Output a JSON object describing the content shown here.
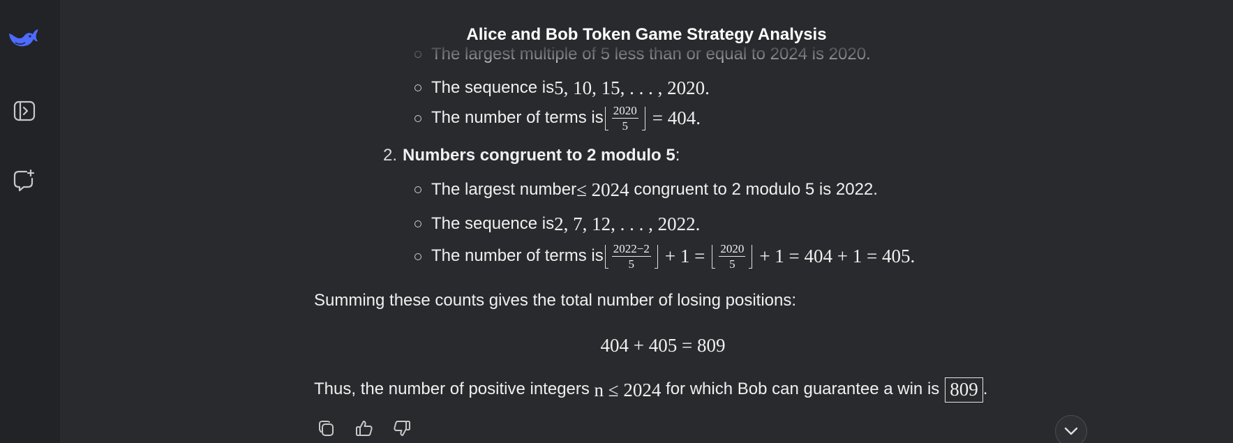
{
  "chat": {
    "title": "Alice and Bob Token Game Strategy Analysis"
  },
  "sidebar": {
    "logo": "deepseek-whale-icon",
    "toggle": "sidebar-toggle-icon",
    "new_chat": "new-chat-icon"
  },
  "content": {
    "case1": {
      "line_a": "The largest multiple of 5 less than or equal to 2024 is 2020.",
      "line_b_text": "The sequence is ",
      "line_b_math": "5, 10, 15, . . . , 2020.",
      "line_c_text": "The number of terms is ",
      "line_c_num": "2020",
      "line_c_den": "5",
      "line_c_rest": "= 404."
    },
    "case2": {
      "number": "2.",
      "heading": "Numbers congruent to 2 modulo 5",
      "heading_suffix": ":",
      "line_a_pre": "The largest number ",
      "line_a_math": "≤ 2024",
      "line_a_post": " congruent to 2 modulo 5 is 2022.",
      "line_b_text": "The sequence is ",
      "line_b_math": "2, 7, 12, . . . , 2022.",
      "line_c_text": "The number of terms is ",
      "frac1_num": "2022−2",
      "frac1_den": "5",
      "mid": "+ 1 =",
      "frac2_num": "2020",
      "frac2_den": "5",
      "end": "+ 1 = 404 + 1 = 405."
    },
    "summary": "Summing these counts gives the total number of losing positions:",
    "equation": "404 + 405 = 809",
    "conclusion_pre": "Thus, the number of positive integers ",
    "conclusion_math": "n ≤ 2024",
    "conclusion_post": " for which Bob can guarantee a win is",
    "answer": "809",
    "period": "."
  },
  "actions": [
    "copy-icon",
    "thumbs-up-icon",
    "thumbs-down-icon"
  ],
  "scroll": "chevron-down-icon",
  "colors": {
    "accent": "#4d6bfe",
    "background": "#292a2d",
    "sidebar": "#212327"
  }
}
